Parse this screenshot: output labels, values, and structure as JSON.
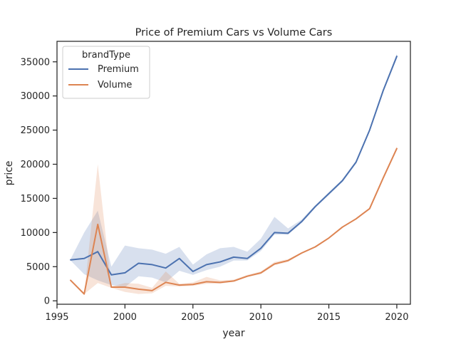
{
  "chart_data": {
    "type": "line",
    "title": "Price of Premium Cars vs Volume Cars",
    "xlabel": "year",
    "ylabel": "price",
    "xlim": [
      1995,
      2021
    ],
    "ylim": [
      -500,
      38000
    ],
    "x_ticks": [
      1995,
      2000,
      2005,
      2010,
      2015,
      2020
    ],
    "x_tick_labels": [
      "1995",
      "2000",
      "2005",
      "2010",
      "2015",
      "2020"
    ],
    "y_ticks": [
      0,
      5000,
      10000,
      15000,
      20000,
      25000,
      30000,
      35000
    ],
    "y_tick_labels": [
      "0",
      "5000",
      "10000",
      "15000",
      "20000",
      "25000",
      "30000",
      "35000"
    ],
    "grid": false,
    "legend": {
      "title": "brandType",
      "placement": "top-left"
    },
    "series": [
      {
        "name": "Premium",
        "color": "#4c72b0",
        "x": [
          1996,
          1997,
          1998,
          1999,
          2000,
          2001,
          2002,
          2003,
          2004,
          2005,
          2006,
          2007,
          2008,
          2009,
          2010,
          2011,
          2012,
          2013,
          2014,
          2015,
          2016,
          2017,
          2018,
          2019,
          2020
        ],
        "y": [
          6000,
          6200,
          7200,
          3800,
          4100,
          5500,
          5300,
          4800,
          6200,
          4300,
          5300,
          5700,
          6400,
          6200,
          7700,
          10000,
          9900,
          11600,
          13800,
          15700,
          17600,
          20300,
          25000,
          30800,
          35800
        ],
        "lower": [
          5900,
          3900,
          3000,
          2300,
          2000,
          3600,
          3400,
          2700,
          4400,
          3800,
          4500,
          5000,
          5900,
          5900,
          7300,
          9700,
          9700,
          11400,
          13600,
          15500,
          17400,
          20100,
          24800,
          30600,
          35500
        ],
        "upper": [
          6100,
          10000,
          13200,
          5000,
          8100,
          7700,
          7500,
          6900,
          7900,
          5300,
          6800,
          7700,
          7900,
          7200,
          9100,
          12300,
          10600,
          11900,
          14000,
          15900,
          17800,
          20500,
          25200,
          31000,
          36200
        ]
      },
      {
        "name": "Volume",
        "color": "#dd8452",
        "x": [
          1996,
          1997,
          1998,
          1999,
          2000,
          2001,
          2002,
          2003,
          2004,
          2005,
          2006,
          2007,
          2008,
          2009,
          2010,
          2011,
          2012,
          2013,
          2014,
          2015,
          2016,
          2017,
          2018,
          2019,
          2020
        ],
        "y": [
          3000,
          1000,
          11200,
          2000,
          2000,
          1700,
          1500,
          2700,
          2300,
          2400,
          2800,
          2700,
          2900,
          3600,
          4100,
          5400,
          5900,
          7000,
          7900,
          9200,
          10800,
          12000,
          13500,
          18000,
          22300
        ],
        "lower": [
          3000,
          1000,
          2600,
          1900,
          1300,
          1000,
          1100,
          2200,
          2100,
          2200,
          2500,
          2500,
          2800,
          3500,
          3900,
          5200,
          5700,
          6900,
          7800,
          9100,
          10700,
          11900,
          13400,
          17900,
          22100
        ],
        "upper": [
          3000,
          1000,
          20000,
          2100,
          2600,
          2500,
          1900,
          4300,
          2500,
          2700,
          3500,
          3000,
          3100,
          3800,
          4300,
          5700,
          6100,
          7100,
          8000,
          9300,
          10900,
          12100,
          13600,
          18100,
          22600
        ]
      }
    ]
  }
}
